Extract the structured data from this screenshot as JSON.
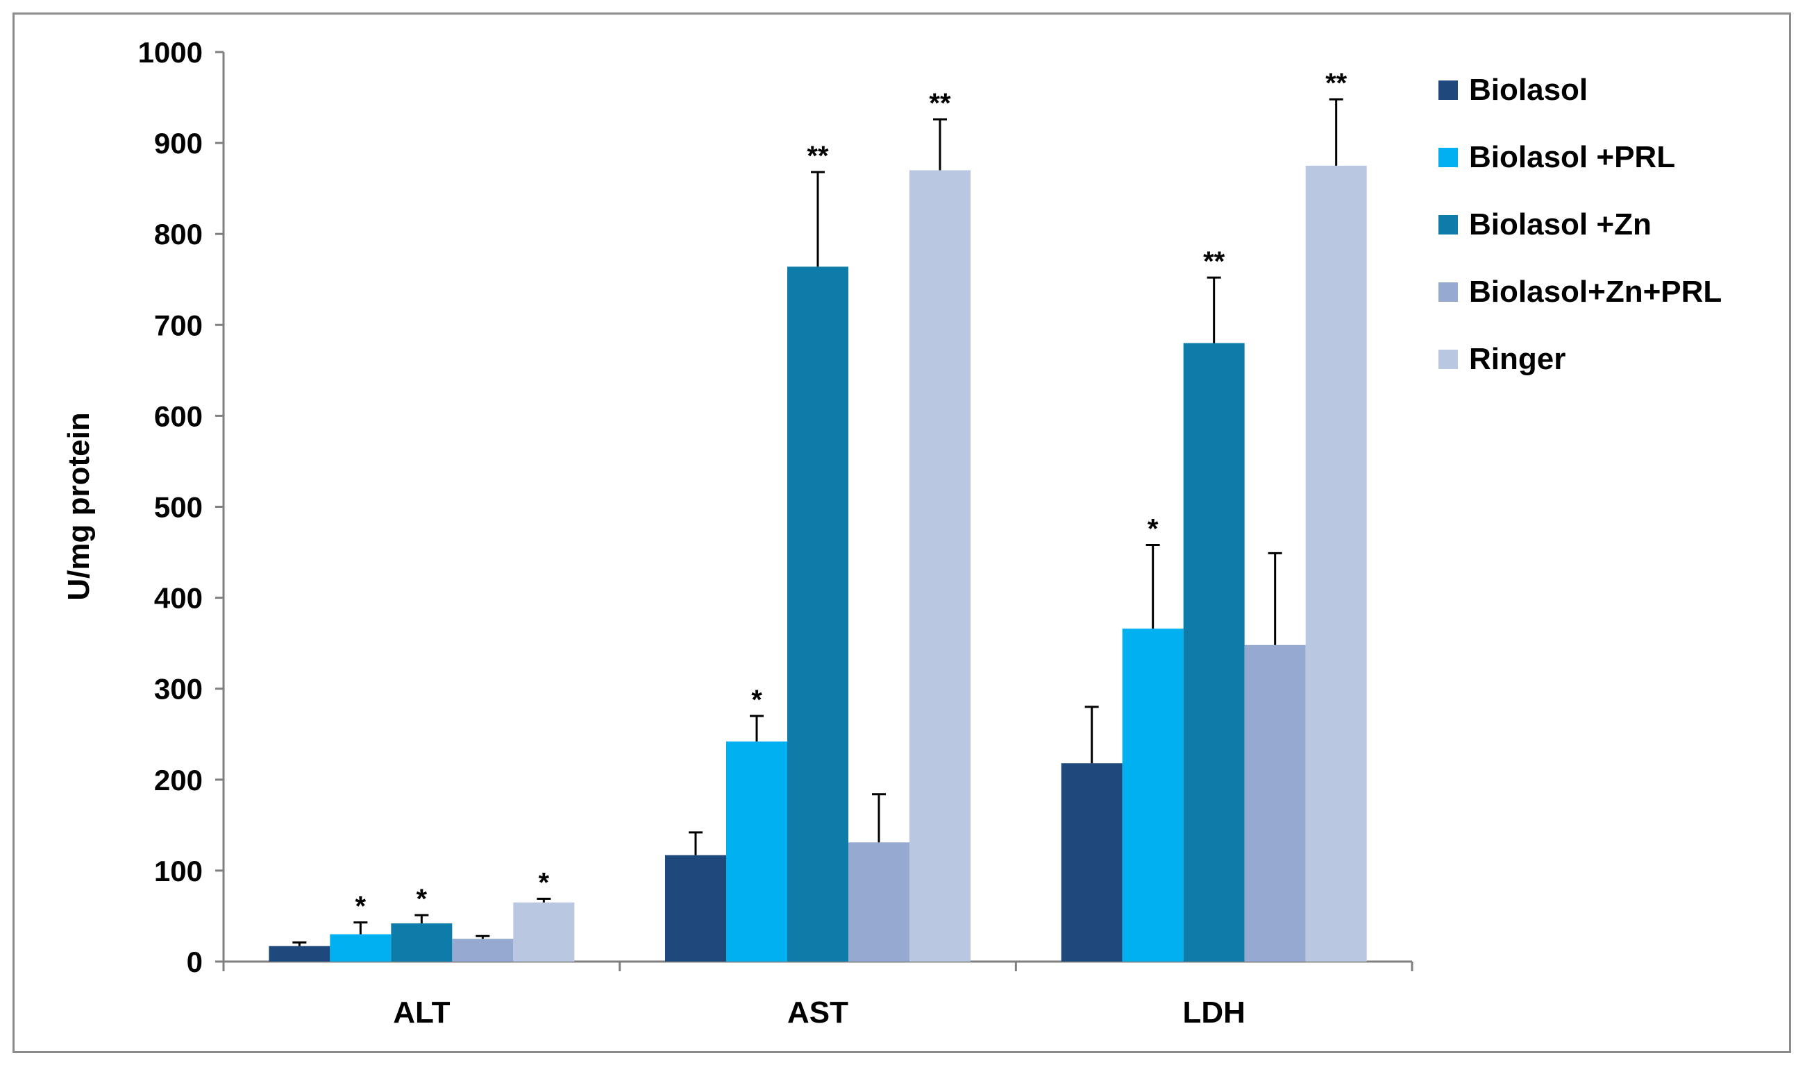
{
  "chart_data": {
    "type": "bar",
    "title": "",
    "xlabel": "",
    "ylabel": "U/mg protein",
    "ylim": [
      0,
      1000
    ],
    "yticks": [
      0,
      100,
      200,
      300,
      400,
      500,
      600,
      700,
      800,
      900,
      1000
    ],
    "grid": false,
    "legend_position": "right",
    "categories": [
      "ALT",
      "AST",
      "LDH"
    ],
    "series": [
      {
        "name": "Biolasol",
        "color": "#1F497D",
        "values": [
          17,
          117,
          218
        ],
        "errors": [
          4,
          25,
          62
        ],
        "significance": [
          "",
          "",
          ""
        ]
      },
      {
        "name": "Biolasol +PRL",
        "color": "#00B0F0",
        "values": [
          30,
          242,
          366
        ],
        "errors": [
          13,
          28,
          92
        ],
        "significance": [
          "*",
          "*",
          "*"
        ]
      },
      {
        "name": "Biolasol +Zn",
        "color": "#0E7CA8",
        "values": [
          42,
          764,
          680
        ],
        "errors": [
          9,
          104,
          72
        ],
        "significance": [
          "*",
          "**",
          "**"
        ]
      },
      {
        "name": "Biolasol+Zn+PRL",
        "color": "#95A9D1",
        "values": [
          25,
          131,
          348
        ],
        "errors": [
          3,
          53,
          101
        ],
        "significance": [
          "",
          "",
          ""
        ]
      },
      {
        "name": "Ringer",
        "color": "#B9C7E0",
        "values": [
          65,
          870,
          875
        ],
        "errors": [
          4,
          56,
          73
        ],
        "significance": [
          "*",
          "**",
          "**"
        ]
      }
    ]
  }
}
